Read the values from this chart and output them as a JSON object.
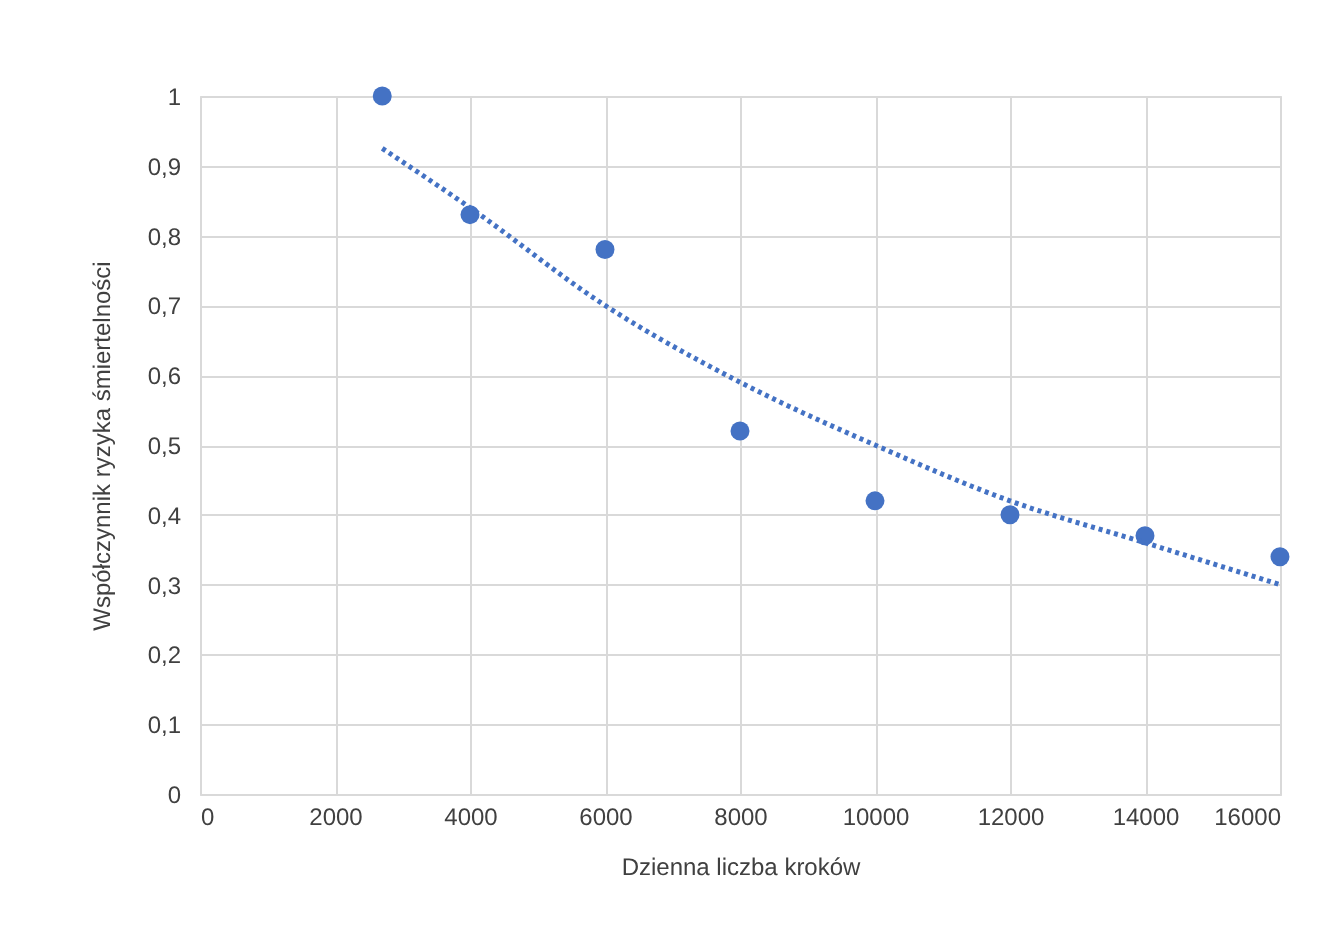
{
  "chart_data": {
    "type": "scatter",
    "xlabel": "Dzienna liczba kroków",
    "ylabel": "Współczynnik ryzyka śmiertelności",
    "series": [
      {
        "color": "#4472c4",
        "marker": "circle",
        "x": [
          2700,
          4000,
          6000,
          8000,
          10000,
          12000,
          14000,
          16000
        ],
        "values": [
          1.0,
          0.83,
          0.78,
          0.52,
          0.42,
          0.4,
          0.37,
          0.34
        ]
      },
      {
        "type": "line",
        "color": "#4472c4",
        "line_style": "dotted",
        "marker": "none",
        "x": [
          2700,
          4000,
          6000,
          8000,
          10000,
          12000,
          14000,
          16000
        ],
        "values": [
          0.925,
          0.84,
          0.7,
          0.59,
          0.5,
          0.42,
          0.36,
          0.3
        ]
      }
    ],
    "xlim": [
      0,
      16000
    ],
    "xticks": [
      0,
      2000,
      4000,
      6000,
      8000,
      10000,
      12000,
      14000,
      16000
    ],
    "ylim": [
      0,
      1
    ],
    "yticks": [
      0,
      {
        "value": 0.1,
        "label": "0,1"
      },
      {
        "value": 0.2,
        "label": "0,2"
      },
      {
        "value": 0.3,
        "label": "0,3"
      },
      {
        "value": 0.4,
        "label": "0,4"
      },
      {
        "value": 0.5,
        "label": "0,5"
      },
      {
        "value": 0.6,
        "label": "0,6"
      },
      {
        "value": 0.7,
        "label": "0,7"
      },
      {
        "value": 0.8,
        "label": "0,8"
      },
      {
        "value": 0.9,
        "label": "0,9"
      },
      1
    ],
    "grid": true
  }
}
